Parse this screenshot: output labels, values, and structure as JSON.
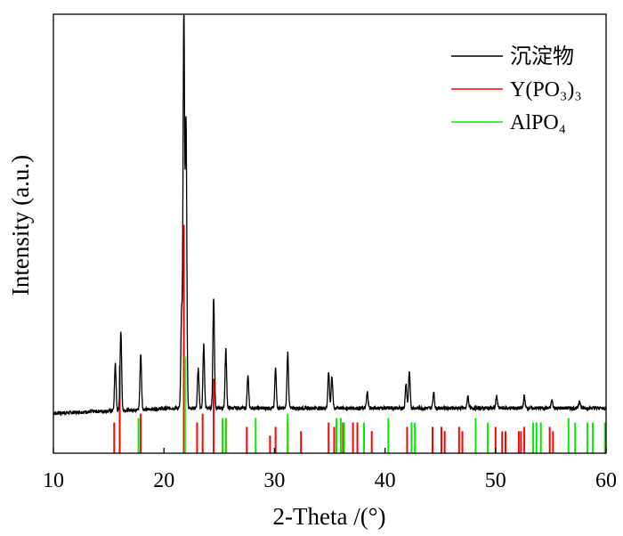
{
  "chart_data": {
    "type": "line",
    "xlabel": "2-Theta /(°)",
    "ylabel": "Intensity (a.u.)",
    "xlim": [
      10,
      60
    ],
    "xticks": [
      10,
      20,
      30,
      40,
      50,
      60
    ],
    "xtick_labels": [
      "10",
      "20",
      "30",
      "40",
      "50",
      "60"
    ],
    "yticks_shown": false,
    "grid": false,
    "legend_position": "top-right",
    "legend": [
      {
        "label": "沉淀物",
        "color": "#000000"
      },
      {
        "label": "Y(PO₃)₃",
        "color": "#ff0000"
      },
      {
        "label": "AlPO₄",
        "color": "#00ee00"
      }
    ],
    "series": [
      {
        "name": "沉淀物",
        "kind": "xrd-pattern",
        "color": "#000000",
        "baseline": 6,
        "peaks": [
          {
            "x": 15.6,
            "h": 12
          },
          {
            "x": 16.1,
            "h": 20
          },
          {
            "x": 17.9,
            "h": 14
          },
          {
            "x": 21.6,
            "h": 24
          },
          {
            "x": 21.8,
            "h": 100
          },
          {
            "x": 22.0,
            "h": 72
          },
          {
            "x": 23.1,
            "h": 10
          },
          {
            "x": 23.6,
            "h": 16
          },
          {
            "x": 24.5,
            "h": 28
          },
          {
            "x": 25.6,
            "h": 15
          },
          {
            "x": 27.6,
            "h": 8
          },
          {
            "x": 30.1,
            "h": 10
          },
          {
            "x": 31.2,
            "h": 14
          },
          {
            "x": 34.9,
            "h": 9
          },
          {
            "x": 35.2,
            "h": 8
          },
          {
            "x": 38.4,
            "h": 4
          },
          {
            "x": 41.9,
            "h": 6
          },
          {
            "x": 42.2,
            "h": 9
          },
          {
            "x": 44.4,
            "h": 4
          },
          {
            "x": 47.5,
            "h": 3
          },
          {
            "x": 50.1,
            "h": 3
          },
          {
            "x": 52.6,
            "h": 3
          },
          {
            "x": 55.1,
            "h": 2
          },
          {
            "x": 57.6,
            "h": 2
          }
        ]
      },
      {
        "name": "Y(PO₃)₃",
        "kind": "reference-sticks",
        "color": "#ff0000",
        "positions": [
          15.5,
          16.0,
          17.9,
          21.8,
          23.0,
          23.5,
          24.5,
          25.6,
          27.5,
          29.6,
          30.1,
          31.2,
          32.4,
          34.9,
          35.4,
          36.2,
          37.1,
          37.5,
          38.1,
          38.8,
          42.0,
          44.3,
          45.1,
          45.4,
          46.7,
          47.0,
          50.0,
          50.6,
          50.9,
          52.1,
          52.3,
          52.6,
          54.9,
          55.2
        ],
        "heights": [
          7,
          20,
          9,
          52,
          7,
          9,
          17,
          8,
          6,
          4,
          6,
          7,
          5,
          7,
          6,
          7,
          7,
          7,
          7,
          5,
          6,
          6,
          6,
          5,
          6,
          5,
          6,
          5,
          5,
          5,
          5,
          6,
          6,
          5
        ]
      },
      {
        "name": "AlPO₄",
        "kind": "reference-sticks",
        "color": "#00ee00",
        "positions": [
          17.7,
          21.9,
          25.3,
          25.6,
          28.3,
          31.2,
          35.6,
          36.0,
          36.3,
          38.1,
          40.3,
          42.4,
          42.7,
          48.2,
          49.3,
          53.4,
          53.7,
          54.1,
          56.6,
          57.2,
          58.3,
          58.8,
          59.9
        ],
        "heights": [
          8,
          22,
          8,
          8,
          8,
          9,
          8,
          8,
          7,
          7,
          8,
          7,
          7,
          8,
          7,
          7,
          7,
          7,
          8,
          7,
          7,
          7,
          7
        ]
      }
    ]
  }
}
